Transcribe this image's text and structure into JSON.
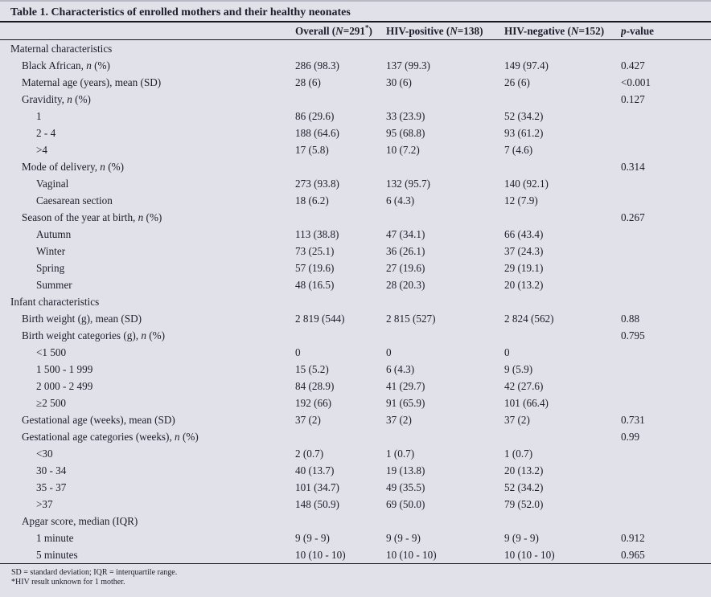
{
  "page": {
    "background": "#e0e1e9",
    "ink": "#1c1e2b"
  },
  "title": "Table 1. Characteristics of enrolled mothers and their healthy neonates",
  "columns": [
    {
      "key": "label",
      "label": ""
    },
    {
      "key": "overall",
      "label": "Overall (*N*=291^*^)"
    },
    {
      "key": "hiv_positive",
      "label": "HIV-positive (*N*=138)"
    },
    {
      "key": "hiv_negative",
      "label": "HIV-negative (*N*=152)"
    },
    {
      "key": "p_value",
      "label": "*p*-value"
    }
  ],
  "rows": [
    {
      "label": "Maternal characteristics",
      "indent": 0,
      "overall": "",
      "hiv_positive": "",
      "hiv_negative": "",
      "p_value": ""
    },
    {
      "label": "Black African, *n* (%)",
      "indent": 1,
      "overall": "286 (98.3)",
      "hiv_positive": "137 (99.3)",
      "hiv_negative": "149 (97.4)",
      "p_value": "0.427"
    },
    {
      "label": "Maternal age (years), mean (SD)",
      "indent": 1,
      "overall": "28 (6)",
      "hiv_positive": "30 (6)",
      "hiv_negative": "26 (6)",
      "p_value": "<0.001"
    },
    {
      "label": "Gravidity, *n* (%)",
      "indent": 1,
      "overall": "",
      "hiv_positive": "",
      "hiv_negative": "",
      "p_value": "0.127"
    },
    {
      "label": "1",
      "indent": 2,
      "overall": "86 (29.6)",
      "hiv_positive": "33 (23.9)",
      "hiv_negative": "52 (34.2)",
      "p_value": ""
    },
    {
      "label": "2 - 4",
      "indent": 2,
      "overall": "188 (64.6)",
      "hiv_positive": "95 (68.8)",
      "hiv_negative": "93 (61.2)",
      "p_value": ""
    },
    {
      "label": ">4",
      "indent": 2,
      "overall": "17 (5.8)",
      "hiv_positive": "10 (7.2)",
      "hiv_negative": "7 (4.6)",
      "p_value": ""
    },
    {
      "label": "Mode of delivery, *n* (%)",
      "indent": 1,
      "overall": "",
      "hiv_positive": "",
      "hiv_negative": "",
      "p_value": "0.314"
    },
    {
      "label": "Vaginal",
      "indent": 2,
      "overall": "273 (93.8)",
      "hiv_positive": "132 (95.7)",
      "hiv_negative": "140 (92.1)",
      "p_value": ""
    },
    {
      "label": "Caesarean section",
      "indent": 2,
      "overall": "18 (6.2)",
      "hiv_positive": "6 (4.3)",
      "hiv_negative": "12 (7.9)",
      "p_value": ""
    },
    {
      "label": "Season of the year at birth, *n* (%)",
      "indent": 1,
      "overall": "",
      "hiv_positive": "",
      "hiv_negative": "",
      "p_value": "0.267"
    },
    {
      "label": "Autumn",
      "indent": 2,
      "overall": "113 (38.8)",
      "hiv_positive": "47 (34.1)",
      "hiv_negative": "66 (43.4)",
      "p_value": ""
    },
    {
      "label": "Winter",
      "indent": 2,
      "overall": "73 (25.1)",
      "hiv_positive": "36 (26.1)",
      "hiv_negative": "37 (24.3)",
      "p_value": ""
    },
    {
      "label": "Spring",
      "indent": 2,
      "overall": "57 (19.6)",
      "hiv_positive": "27 (19.6)",
      "hiv_negative": "29 (19.1)",
      "p_value": ""
    },
    {
      "label": "Summer",
      "indent": 2,
      "overall": "48 (16.5)",
      "hiv_positive": "28 (20.3)",
      "hiv_negative": "20 (13.2)",
      "p_value": ""
    },
    {
      "label": "Infant characteristics",
      "indent": 0,
      "overall": "",
      "hiv_positive": "",
      "hiv_negative": "",
      "p_value": ""
    },
    {
      "label": "Birth weight (g), mean (SD)",
      "indent": 1,
      "overall": "2 819 (544)",
      "hiv_positive": "2 815 (527)",
      "hiv_negative": "2 824 (562)",
      "p_value": "0.88"
    },
    {
      "label": "Birth weight categories (g), *n* (%)",
      "indent": 1,
      "overall": "",
      "hiv_positive": "",
      "hiv_negative": "",
      "p_value": "0.795"
    },
    {
      "label": "<1 500",
      "indent": 2,
      "overall": "0",
      "hiv_positive": "0",
      "hiv_negative": "0",
      "p_value": ""
    },
    {
      "label": "1 500 - 1 999",
      "indent": 2,
      "overall": "15 (5.2)",
      "hiv_positive": "6 (4.3)",
      "hiv_negative": "9 (5.9)",
      "p_value": ""
    },
    {
      "label": "2 000 - 2 499",
      "indent": 2,
      "overall": "84 (28.9)",
      "hiv_positive": "41 (29.7)",
      "hiv_negative": "42 (27.6)",
      "p_value": ""
    },
    {
      "label": "≥2 500",
      "indent": 2,
      "overall": "192 (66)",
      "hiv_positive": "91 (65.9)",
      "hiv_negative": "101 (66.4)",
      "p_value": ""
    },
    {
      "label": "Gestational age (weeks), mean (SD)",
      "indent": 1,
      "overall": "37 (2)",
      "hiv_positive": "37 (2)",
      "hiv_negative": "37 (2)",
      "p_value": "0.731"
    },
    {
      "label": "Gestational age categories (weeks), *n* (%)",
      "indent": 1,
      "overall": "",
      "hiv_positive": "",
      "hiv_negative": "",
      "p_value": "0.99"
    },
    {
      "label": "<30",
      "indent": 2,
      "overall": "2 (0.7)",
      "hiv_positive": "1 (0.7)",
      "hiv_negative": "1 (0.7)",
      "p_value": ""
    },
    {
      "label": "30 - 34",
      "indent": 2,
      "overall": "40 (13.7)",
      "hiv_positive": "19 (13.8)",
      "hiv_negative": "20 (13.2)",
      "p_value": ""
    },
    {
      "label": "35 - 37",
      "indent": 2,
      "overall": "101 (34.7)",
      "hiv_positive": "49 (35.5)",
      "hiv_negative": "52 (34.2)",
      "p_value": ""
    },
    {
      "label": ">37",
      "indent": 2,
      "overall": "148 (50.9)",
      "hiv_positive": "69 (50.0)",
      "hiv_negative": "79 (52.0)",
      "p_value": ""
    },
    {
      "label": "Apgar score, median (IQR)",
      "indent": 1,
      "overall": "",
      "hiv_positive": "",
      "hiv_negative": "",
      "p_value": ""
    },
    {
      "label": "1 minute",
      "indent": 2,
      "overall": "9 (9 - 9)",
      "hiv_positive": "9 (9 - 9)",
      "hiv_negative": "9 (9 - 9)",
      "p_value": "0.912"
    },
    {
      "label": "5 minutes",
      "indent": 2,
      "overall": "10 (10 - 10)",
      "hiv_positive": "10 (10 - 10)",
      "hiv_negative": "10 (10 - 10)",
      "p_value": "0.965"
    }
  ],
  "footnotes": [
    "SD = standard deviation; IQR = interquartile range.",
    "*HIV result unknown for 1 mother."
  ]
}
